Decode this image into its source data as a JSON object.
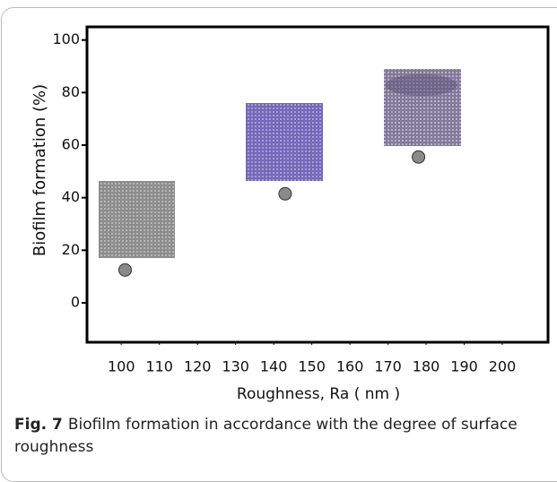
{
  "chart_data": {
    "type": "scatter",
    "xlabel": "Roughness, Ra  ( nm )",
    "ylabel": "Biofilm formation (%)",
    "figure_label": "Fig. 7",
    "caption": "Biofilm formation in accordance with the degree of surface roughness",
    "series": [
      {
        "color": "#8a8a8a",
        "x": [
          101,
          143,
          178
        ],
        "values": [
          12.5,
          41.5,
          55.5
        ]
      }
    ],
    "xlim": [
      91,
      212
    ],
    "xticks": [
      100,
      110,
      120,
      130,
      140,
      150,
      160,
      170,
      180,
      190,
      200
    ],
    "ylim": [
      -15,
      105
    ],
    "yticks": [
      0,
      20,
      40,
      60,
      80,
      100
    ]
  }
}
